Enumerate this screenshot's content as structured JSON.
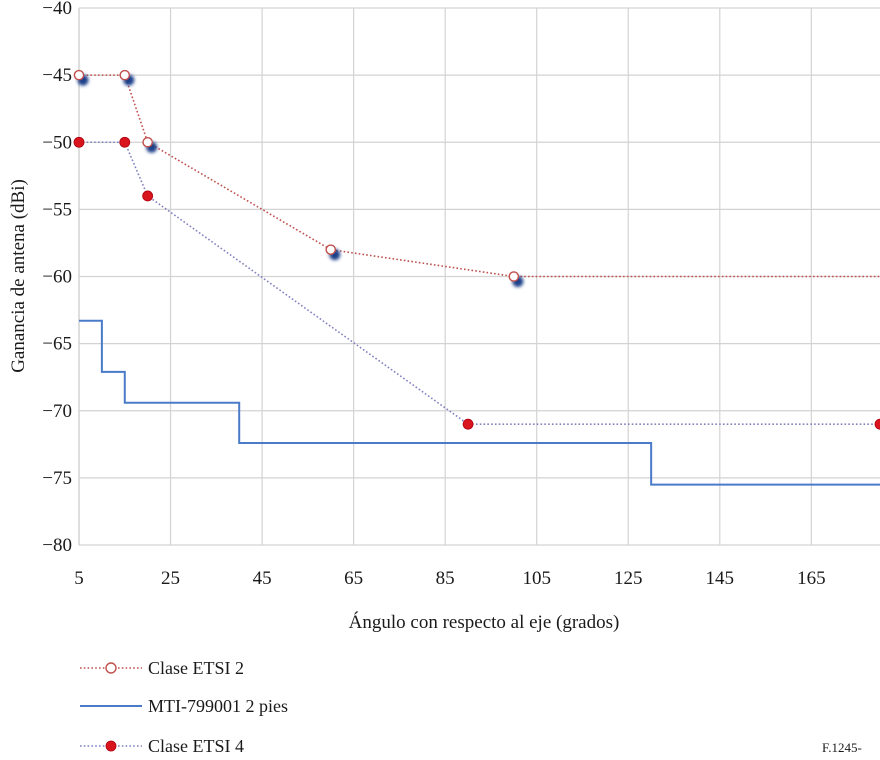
{
  "chart_data": {
    "type": "line",
    "xlabel": "Ángulo con respecto al eje (grados)",
    "ylabel": "Ganancia de antena (dBi)",
    "xlim": [
      5,
      180
    ],
    "ylim": [
      -80,
      -40
    ],
    "x_ticks": [
      5,
      25,
      45,
      65,
      85,
      105,
      125,
      145,
      165
    ],
    "y_ticks": [
      -40,
      -45,
      -50,
      -55,
      -60,
      -65,
      -70,
      -75,
      -80
    ],
    "grid": true,
    "legend_position": "bottom-left",
    "series": [
      {
        "name": "Clase ETSI  2",
        "style": "dotted-open-circle",
        "color": "#c0504d",
        "x": [
          5,
          15,
          20,
          60,
          100,
          180
        ],
        "y": [
          -45,
          -45,
          -50,
          -58,
          -60,
          -60
        ],
        "markers_x": [
          5,
          15,
          20,
          60,
          100
        ]
      },
      {
        "name": "MTI-799001 2 pies",
        "style": "solid-step",
        "color": "#4a7bc8",
        "x": [
          5,
          10,
          10,
          15,
          15,
          40,
          40,
          130,
          130,
          180
        ],
        "y": [
          -63.3,
          -63.3,
          -67.1,
          -67.1,
          -69.4,
          -69.4,
          -72.4,
          -72.4,
          -75.5,
          -75.5
        ]
      },
      {
        "name": "Clase ETSI 4",
        "style": "dotted-filled-circle",
        "color": "#8080c0",
        "marker_color": "#d9141c",
        "x": [
          5,
          15,
          20,
          90,
          180
        ],
        "y": [
          -50,
          -50,
          -54,
          -71,
          -71
        ],
        "markers_x": [
          5,
          15,
          20,
          90,
          180
        ]
      }
    ]
  },
  "figure_ref": "F.1245-"
}
